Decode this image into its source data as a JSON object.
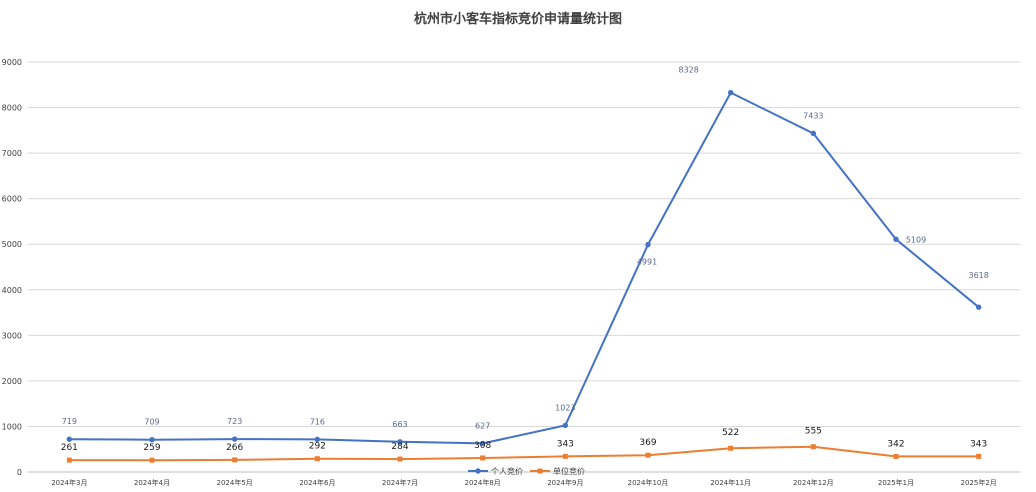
{
  "chart_data": {
    "type": "line",
    "title": "杭州市小客车指标竞价申请量统计图",
    "xlabel": "",
    "ylabel": "",
    "categories": [
      "2024年3月",
      "2024年4月",
      "2024年5月",
      "2024年6月",
      "2024年7月",
      "2024年8月",
      "2024年9月",
      "2024年10月",
      "2024年11月",
      "2024年12月",
      "2025年1月",
      "2025年2月"
    ],
    "ylim": [
      0,
      9000
    ],
    "yticks": [
      "0",
      "1000",
      "2000",
      "3000",
      "4000",
      "5000",
      "6000",
      "7000",
      "8000",
      "9000"
    ],
    "grid": true,
    "legend": "bottom",
    "series": [
      {
        "name": "个人竞价",
        "color": "#4472c4",
        "marker": "circle",
        "values": [
          719,
          709,
          723,
          716,
          663,
          627,
          1023,
          4991,
          8328,
          7433,
          5109,
          3618
        ],
        "labels": [
          "719",
          "709",
          "723",
          "716",
          "663",
          "627",
          "1023",
          "4991",
          "8328",
          "7433",
          "5109",
          "3618"
        ]
      },
      {
        "name": "单位竞价",
        "color": "#ed7d31",
        "marker": "square",
        "values": [
          261,
          259,
          266,
          292,
          284,
          308,
          343,
          369,
          522,
          555,
          342,
          343
        ],
        "labels": [
          "261",
          "259",
          "266",
          "292",
          "284",
          "308",
          "343",
          "369",
          "522",
          "555",
          "342",
          "343"
        ]
      }
    ]
  }
}
